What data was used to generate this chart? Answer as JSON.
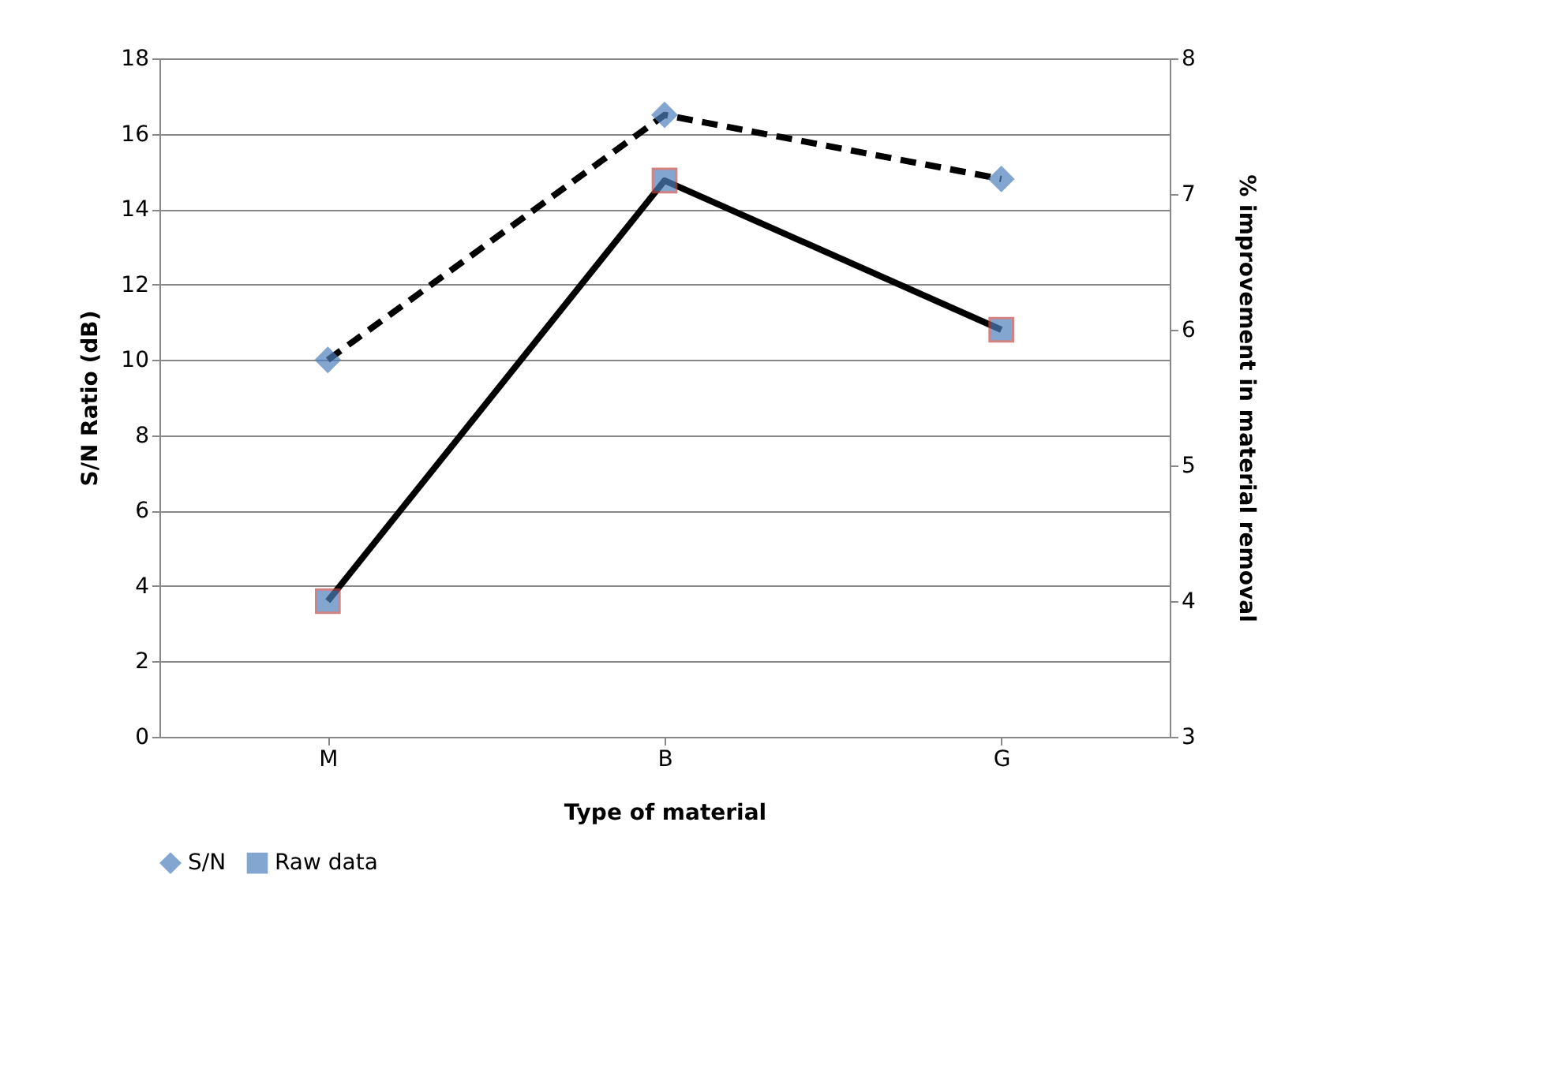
{
  "chart_data": {
    "type": "line",
    "xlabel": "Type of material",
    "ylabel": "S/N Ratio (dB)",
    "y2label": "% improvement in material removal",
    "categories": [
      "M",
      "B",
      "G"
    ],
    "series": [
      {
        "name": "S/N",
        "color": "#4f81bd",
        "values": [
          10.0,
          16.5,
          14.8
        ],
        "marker": "diamond",
        "line_style": "dashed"
      },
      {
        "name": "Raw data",
        "color": "#4f81bd",
        "values": [
          4.0,
          7.1,
          6.0
        ],
        "marker": "square",
        "line_style": "solid",
        "axis": "y2"
      }
    ],
    "ylim": [
      0,
      18
    ],
    "yticks": [
      0,
      2,
      4,
      6,
      8,
      10,
      12,
      14,
      16,
      18
    ],
    "y2lim": [
      3,
      8
    ],
    "y2ticks": [
      3,
      4,
      5,
      6,
      7,
      8
    ],
    "grid": "y",
    "legend": "bottom"
  }
}
